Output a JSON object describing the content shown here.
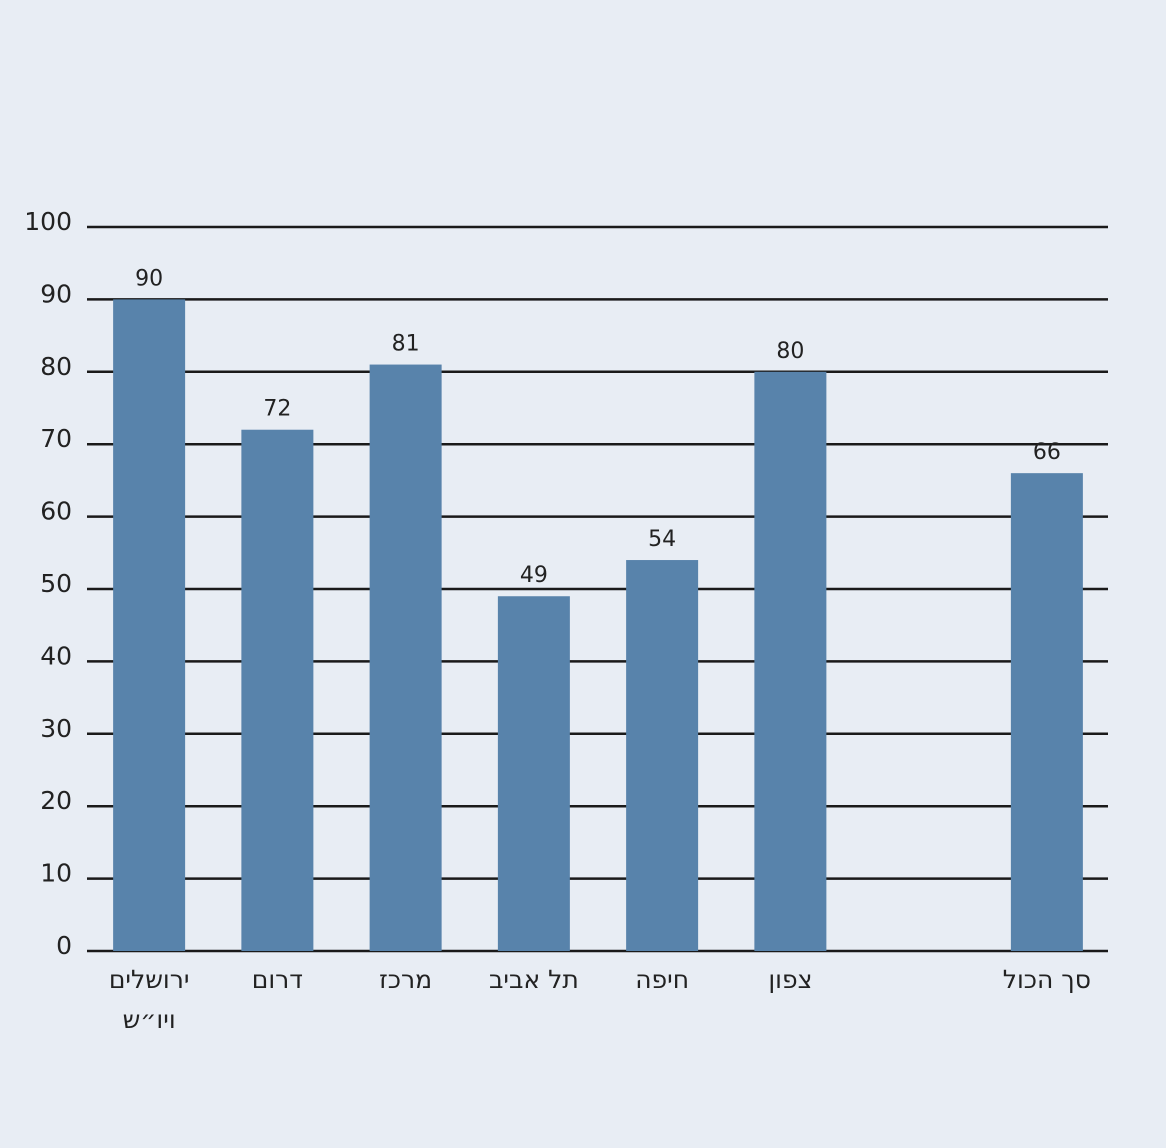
{
  "chart_data": {
    "type": "bar",
    "categories": [
      "ירושלים ויו״ש",
      "דרום",
      "מרכז",
      "תל אביב",
      "חיפה",
      "צפון",
      null,
      "סך הכול"
    ],
    "values": [
      90,
      72,
      81,
      49,
      54,
      80,
      null,
      66
    ],
    "color": "#5883ab",
    "ylim": [
      0,
      100
    ],
    "yticks": [
      0,
      10,
      20,
      30,
      40,
      50,
      60,
      70,
      80,
      90,
      100
    ],
    "grid": true
  }
}
